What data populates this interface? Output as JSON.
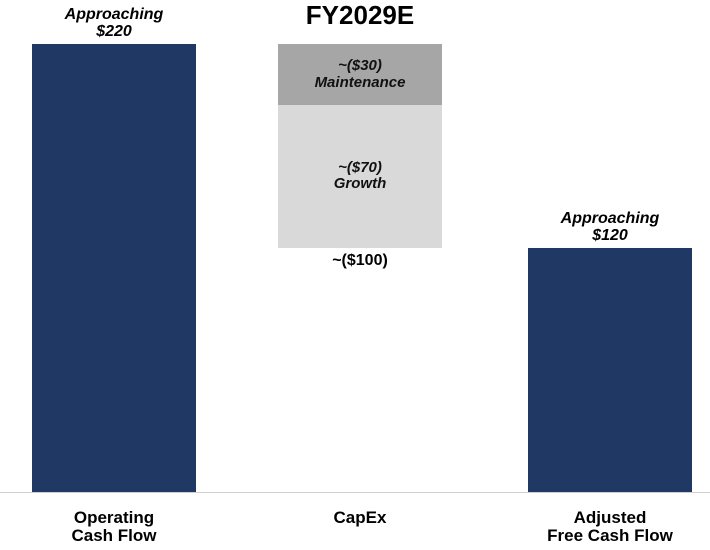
{
  "chart_data": {
    "type": "waterfall",
    "title": "FY2029E",
    "categories": [
      "Operating\nCash Flow",
      "CapEx",
      "Adjusted\nFree Cash Flow"
    ],
    "values": [
      220,
      -100,
      120
    ],
    "value_labels": [
      "Approaching\n$220",
      "~($100)",
      "Approaching\n$120"
    ],
    "color": "#203864",
    "segments": [
      {
        "name": "Maintenance",
        "value": -30,
        "value_label": "~($30)",
        "color": "#a6a6a6"
      },
      {
        "name": "Growth",
        "value": -70,
        "value_label": "~($70)",
        "color": "#d9d9d9"
      }
    ]
  }
}
